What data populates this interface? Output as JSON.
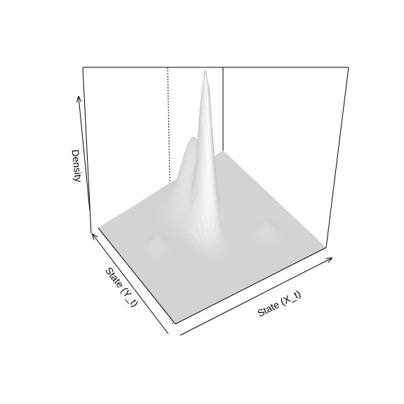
{
  "chart_data": {
    "type": "surface",
    "title": "",
    "xlabel": "State (X_t)",
    "ylabel": "State (Y_t)",
    "zlabel": "Density",
    "surface_color": "#c8c8c8",
    "box_color": "#000000",
    "peaks": [
      {
        "name": "central-tall-peak",
        "x": 0.5,
        "y": 0.5,
        "height": 1.0
      },
      {
        "name": "rear-broad-peak",
        "x": 0.56,
        "y": 0.72,
        "height": 0.45
      },
      {
        "name": "left-small-bump",
        "x": 0.22,
        "y": 0.62,
        "height": 0.07
      },
      {
        "name": "right-small-bump",
        "x": 0.8,
        "y": 0.3,
        "height": 0.07
      }
    ]
  }
}
